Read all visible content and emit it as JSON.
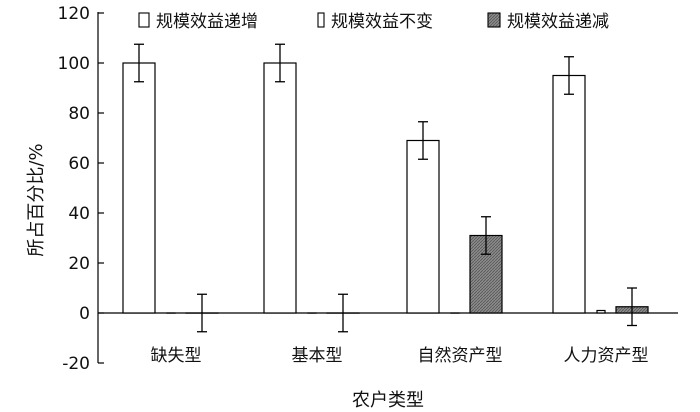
{
  "chart_data": {
    "type": "bar",
    "xlabel": "农户类型",
    "ylabel": "所占百分比/%",
    "categories": [
      "缺失型",
      "基本型",
      "自然资产型",
      "人力资产型"
    ],
    "ylim": [
      -20,
      120
    ],
    "yticks": [
      -20,
      0,
      20,
      40,
      60,
      80,
      100,
      120
    ],
    "legend_position": "top",
    "grid": false,
    "error_bars": true,
    "series": [
      {
        "name": "规模效益递增",
        "values": [
          100,
          100,
          69,
          95
        ],
        "errors": [
          7.5,
          7.5,
          7.5,
          7.5
        ],
        "fill": "white"
      },
      {
        "name": "规模效益不变",
        "values": [
          0,
          0,
          0,
          1
        ],
        "errors": [
          0,
          0,
          0,
          0
        ],
        "fill": "white"
      },
      {
        "name": "规模效益递减",
        "values": [
          0,
          0,
          31,
          2.5
        ],
        "errors": [
          7.5,
          7.5,
          7.5,
          7.5
        ],
        "fill": "hatched-gray"
      }
    ]
  }
}
